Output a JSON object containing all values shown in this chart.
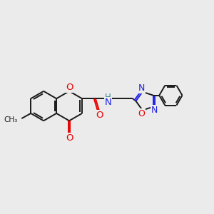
{
  "bg_color": "#ebebeb",
  "bond_color": "#1a1a1a",
  "bond_width": 1.4,
  "figsize": [
    3.0,
    3.0
  ],
  "dpi": 100,
  "atom_colors": {
    "O": "#e80000",
    "N": "#2020e8",
    "H": "#3a8a8a"
  },
  "xlim": [
    0,
    10
  ],
  "ylim": [
    2,
    8
  ]
}
